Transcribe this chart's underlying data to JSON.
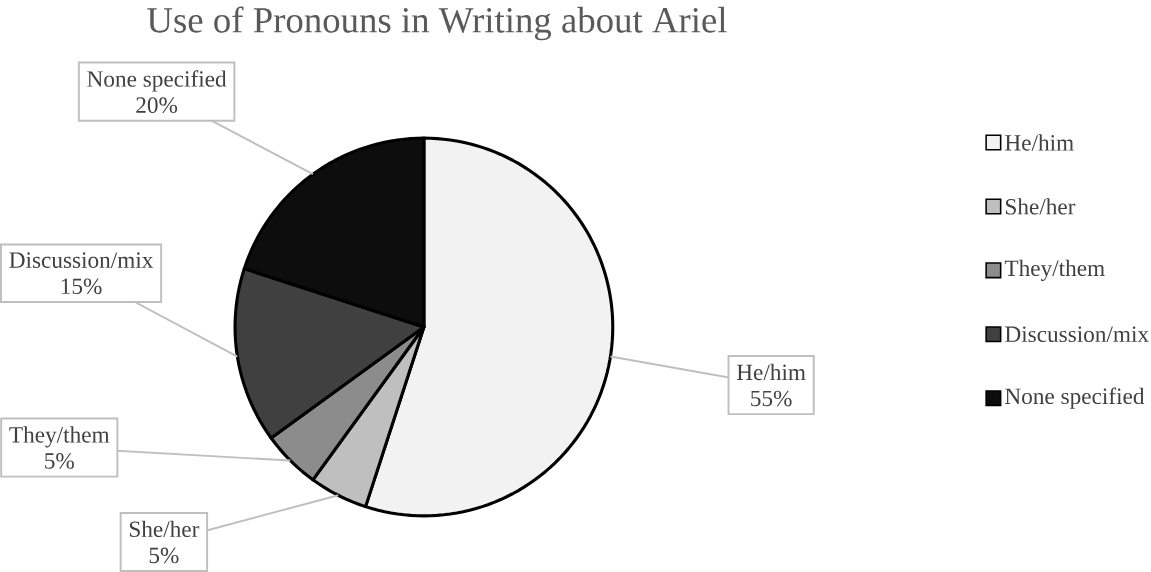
{
  "chart_data": {
    "type": "pie",
    "title": "Use of Pronouns in Writing about Ariel",
    "categories": [
      "He/him",
      "She/her",
      "They/them",
      "Discussion/mix",
      "None specified"
    ],
    "values": [
      55,
      5,
      5,
      15,
      20
    ],
    "value_labels": [
      "55%",
      "5%",
      "5%",
      "15%",
      "20%"
    ],
    "colors": [
      "#f2f2f2",
      "#bfbfbf",
      "#8c8c8c",
      "#404040",
      "#0d0d0d"
    ],
    "legend": "right"
  }
}
